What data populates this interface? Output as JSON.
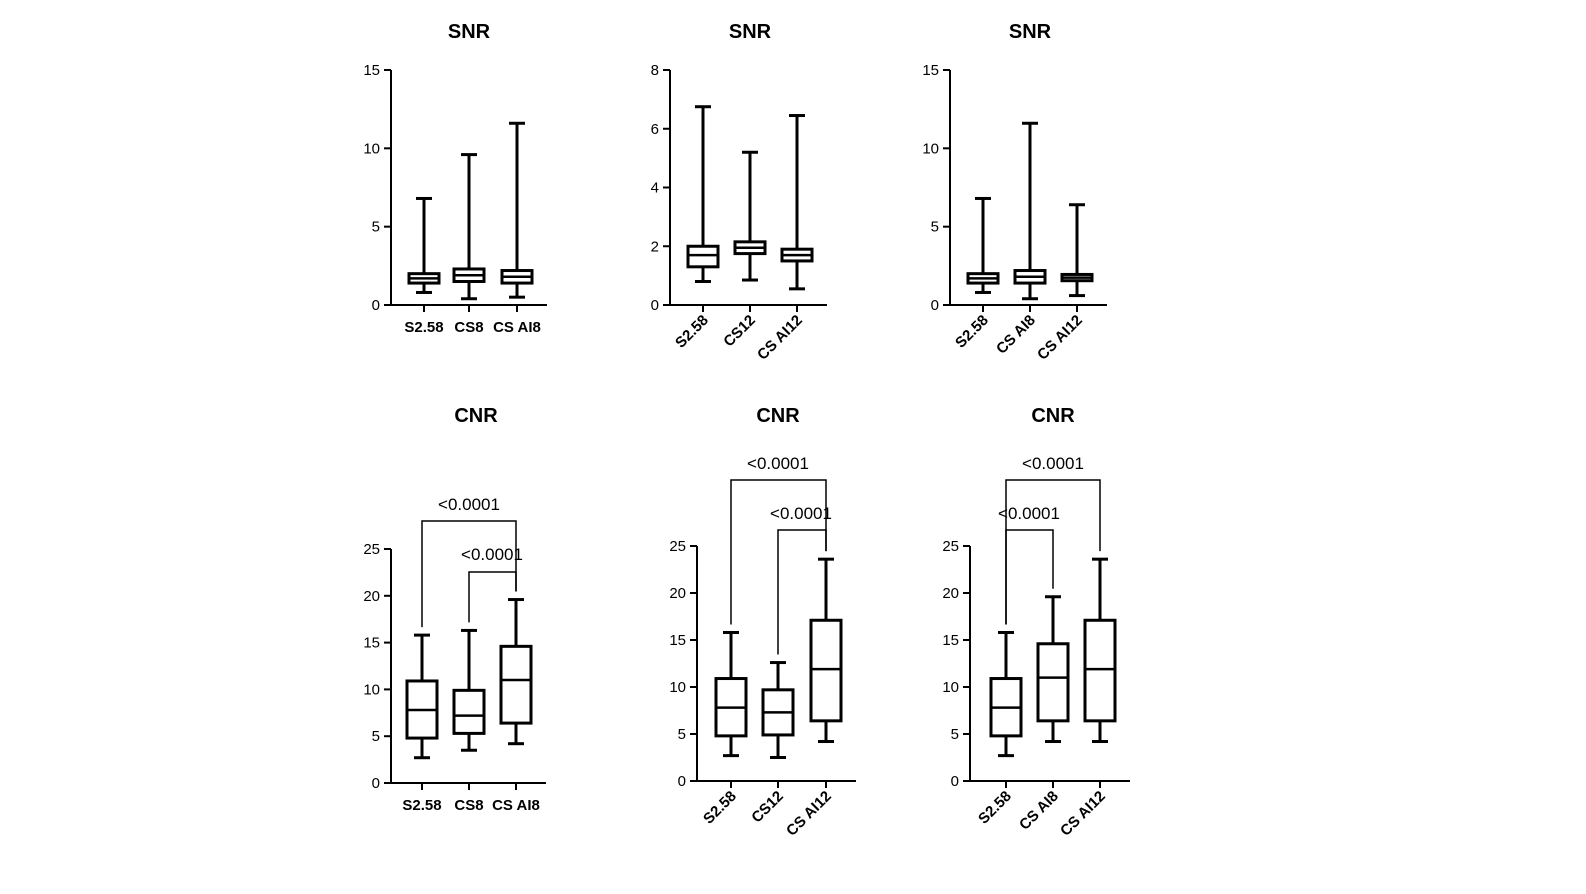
{
  "chart_data": [
    {
      "type": "box",
      "title": "SNR",
      "categories": [
        "S2.58",
        "CS8",
        "CS AI8"
      ],
      "ylim": [
        0,
        15
      ],
      "yticks": [
        0,
        5,
        10,
        15
      ],
      "tick_labels": [
        "0",
        "5",
        "10",
        "15"
      ],
      "boxes": [
        {
          "min": 0.8,
          "q1": 1.4,
          "median": 1.7,
          "q3": 2.0,
          "max": 6.8
        },
        {
          "min": 0.4,
          "q1": 1.5,
          "median": 1.9,
          "q3": 2.3,
          "max": 9.6
        },
        {
          "min": 0.5,
          "q1": 1.4,
          "median": 1.8,
          "q3": 2.2,
          "max": 11.6
        }
      ],
      "comparisons": []
    },
    {
      "type": "box",
      "title": "SNR",
      "categories": [
        "S2.58",
        "CS12",
        "CS AI12"
      ],
      "ylim": [
        0,
        8
      ],
      "yticks": [
        0,
        2,
        4,
        6,
        8
      ],
      "tick_labels": [
        "0",
        "2",
        "4",
        "6",
        "8"
      ],
      "boxes": [
        {
          "min": 0.8,
          "q1": 1.3,
          "median": 1.7,
          "q3": 2.0,
          "max": 6.75
        },
        {
          "min": 0.85,
          "q1": 1.75,
          "median": 1.95,
          "q3": 2.15,
          "max": 5.2
        },
        {
          "min": 0.55,
          "q1": 1.5,
          "median": 1.7,
          "q3": 1.9,
          "max": 6.45
        }
      ],
      "comparisons": []
    },
    {
      "type": "box",
      "title": "SNR",
      "categories": [
        "S2.58",
        "CS AI8",
        "CS AI12"
      ],
      "ylim": [
        0,
        15
      ],
      "yticks": [
        0,
        5,
        10,
        15
      ],
      "tick_labels": [
        "0",
        "5",
        "10",
        "15"
      ],
      "boxes": [
        {
          "min": 0.8,
          "q1": 1.4,
          "median": 1.7,
          "q3": 2.0,
          "max": 6.8
        },
        {
          "min": 0.4,
          "q1": 1.4,
          "median": 1.8,
          "q3": 2.2,
          "max": 11.6
        },
        {
          "min": 0.6,
          "q1": 1.55,
          "median": 1.75,
          "q3": 1.95,
          "max": 6.4
        }
      ],
      "comparisons": []
    },
    {
      "type": "box",
      "title": "CNR",
      "categories": [
        "S2.58",
        "CS8",
        "CS AI8"
      ],
      "ylim": [
        0,
        25
      ],
      "yticks": [
        0,
        5,
        10,
        15,
        20,
        25
      ],
      "tick_labels": [
        "0",
        "5",
        "10",
        "15",
        "20",
        "25"
      ],
      "boxes": [
        {
          "min": 2.7,
          "q1": 4.8,
          "median": 7.8,
          "q3": 10.9,
          "max": 15.8
        },
        {
          "min": 3.5,
          "q1": 5.3,
          "median": 7.2,
          "q3": 9.9,
          "max": 16.3
        },
        {
          "min": 4.2,
          "q1": 6.4,
          "median": 11.0,
          "q3": 14.6,
          "max": 19.6
        }
      ],
      "comparisons": [
        {
          "from": 0,
          "to": 2,
          "label": "<0.0001"
        },
        {
          "from": 1,
          "to": 2,
          "label": "<0.0001"
        }
      ]
    },
    {
      "type": "box",
      "title": "CNR",
      "categories": [
        "S2.58",
        "CS12",
        "CS AI12"
      ],
      "ylim": [
        0,
        25
      ],
      "yticks": [
        0,
        5,
        10,
        15,
        20,
        25
      ],
      "tick_labels": [
        "0",
        "5",
        "10",
        "15",
        "20",
        "25"
      ],
      "boxes": [
        {
          "min": 2.7,
          "q1": 4.8,
          "median": 7.8,
          "q3": 10.9,
          "max": 15.8
        },
        {
          "min": 2.5,
          "q1": 4.9,
          "median": 7.3,
          "q3": 9.7,
          "max": 12.6
        },
        {
          "min": 4.2,
          "q1": 6.4,
          "median": 11.9,
          "q3": 17.1,
          "max": 23.6
        }
      ],
      "comparisons": [
        {
          "from": 0,
          "to": 2,
          "label": "<0.0001"
        },
        {
          "from": 1,
          "to": 2,
          "label": "<0.0001"
        }
      ]
    },
    {
      "type": "box",
      "title": "CNR",
      "categories": [
        "S2.58",
        "CS AI8",
        "CS AI12"
      ],
      "ylim": [
        0,
        25
      ],
      "yticks": [
        0,
        5,
        10,
        15,
        20,
        25
      ],
      "tick_labels": [
        "0",
        "5",
        "10",
        "15",
        "20",
        "25"
      ],
      "boxes": [
        {
          "min": 2.7,
          "q1": 4.8,
          "median": 7.8,
          "q3": 10.9,
          "max": 15.8
        },
        {
          "min": 4.2,
          "q1": 6.4,
          "median": 11.0,
          "q3": 14.6,
          "max": 19.6
        },
        {
          "min": 4.2,
          "q1": 6.4,
          "median": 11.9,
          "q3": 17.1,
          "max": 23.6
        }
      ],
      "comparisons": [
        {
          "from": 0,
          "to": 1,
          "label": "<0.0001"
        },
        {
          "from": 0,
          "to": 2,
          "label": "<0.0001"
        }
      ]
    }
  ]
}
